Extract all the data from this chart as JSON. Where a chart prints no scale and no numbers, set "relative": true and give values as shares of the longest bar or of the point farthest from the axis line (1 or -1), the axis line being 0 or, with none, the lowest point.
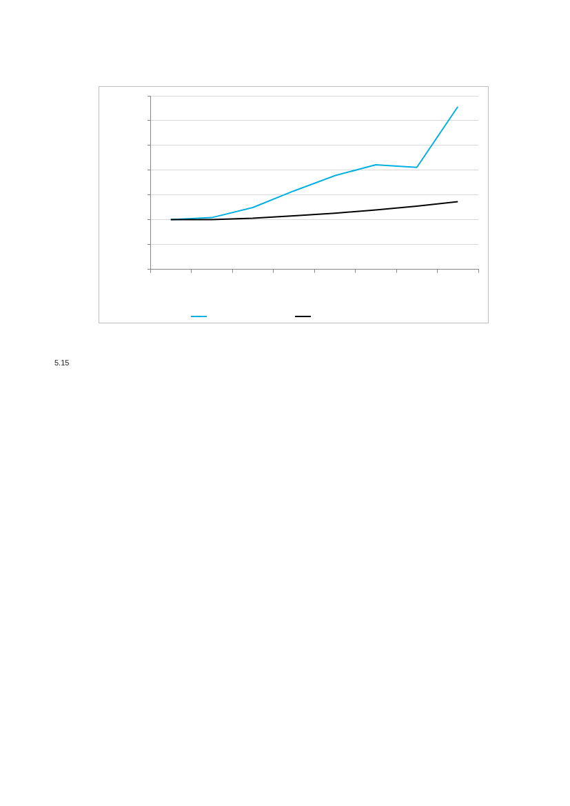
{
  "chart_data": {
    "type": "line",
    "relative": true,
    "categories": [
      null,
      null,
      null,
      null,
      null,
      null,
      null,
      null
    ],
    "series": [
      {
        "color": "#00b0e0",
        "values": [
          0.306,
          0.318,
          0.38,
          0.482,
          0.576,
          0.643,
          0.627,
          1
        ]
      },
      {
        "color": "#000000",
        "values": [
          0.306,
          0.306,
          0.314,
          0.329,
          0.345,
          0.365,
          0.388,
          0.416
        ]
      }
    ],
    "grid": "y",
    "marker": "none",
    "line_style": "solid",
    "annotations": [
      "5.15"
    ]
  }
}
